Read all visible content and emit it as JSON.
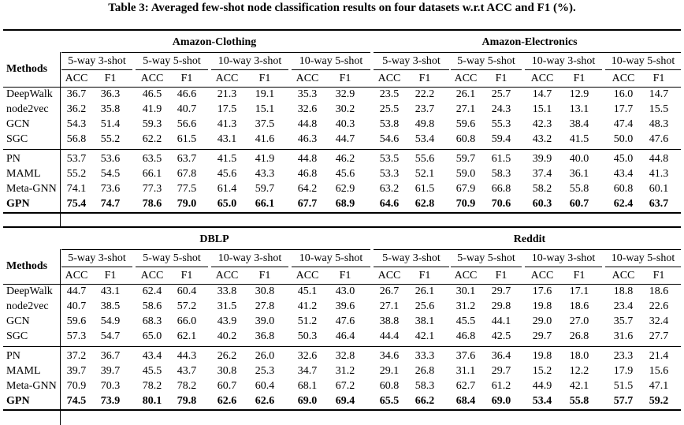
{
  "caption": "Table 3: Averaged few-shot node classification results on four datasets w.r.t ACC and F1 (%).",
  "methods_header": "Methods",
  "settings": [
    "5-way 3-shot",
    "5-way 5-shot",
    "10-way 3-shot",
    "10-way 5-shot"
  ],
  "metrics": [
    "ACC",
    "F1"
  ],
  "methods": [
    "DeepWalk",
    "node2vec",
    "GCN",
    "SGC",
    "PN",
    "MAML",
    "Meta-GNN",
    "GPN"
  ],
  "blocks": [
    {
      "datasets": [
        "Amazon-Clothing",
        "Amazon-Electronics"
      ],
      "rows": [
        [
          "36.7",
          "36.3",
          "46.5",
          "46.6",
          "21.3",
          "19.1",
          "35.3",
          "32.9",
          "23.5",
          "22.2",
          "26.1",
          "25.7",
          "14.7",
          "12.9",
          "16.0",
          "14.7"
        ],
        [
          "36.2",
          "35.8",
          "41.9",
          "40.7",
          "17.5",
          "15.1",
          "32.6",
          "30.2",
          "25.5",
          "23.7",
          "27.1",
          "24.3",
          "15.1",
          "13.1",
          "17.7",
          "15.5"
        ],
        [
          "54.3",
          "51.4",
          "59.3",
          "56.6",
          "41.3",
          "37.5",
          "44.8",
          "40.3",
          "53.8",
          "49.8",
          "59.6",
          "55.3",
          "42.3",
          "38.4",
          "47.4",
          "48.3"
        ],
        [
          "56.8",
          "55.2",
          "62.2",
          "61.5",
          "43.1",
          "41.6",
          "46.3",
          "44.7",
          "54.6",
          "53.4",
          "60.8",
          "59.4",
          "43.2",
          "41.5",
          "50.0",
          "47.6"
        ],
        [
          "53.7",
          "53.6",
          "63.5",
          "63.7",
          "41.5",
          "41.9",
          "44.8",
          "46.2",
          "53.5",
          "55.6",
          "59.7",
          "61.5",
          "39.9",
          "40.0",
          "45.0",
          "44.8"
        ],
        [
          "55.2",
          "54.5",
          "66.1",
          "67.8",
          "45.6",
          "43.3",
          "46.8",
          "45.6",
          "53.3",
          "52.1",
          "59.0",
          "58.3",
          "37.4",
          "36.1",
          "43.4",
          "41.3"
        ],
        [
          "74.1",
          "73.6",
          "77.3",
          "77.5",
          "61.4",
          "59.7",
          "64.2",
          "62.9",
          "63.2",
          "61.5",
          "67.9",
          "66.8",
          "58.2",
          "55.8",
          "60.8",
          "60.1"
        ],
        [
          "75.4",
          "74.7",
          "78.6",
          "79.0",
          "65.0",
          "66.1",
          "67.7",
          "68.9",
          "64.6",
          "62.8",
          "70.9",
          "70.6",
          "60.3",
          "60.7",
          "62.4",
          "63.7"
        ]
      ]
    },
    {
      "datasets": [
        "DBLP",
        "Reddit"
      ],
      "rows": [
        [
          "44.7",
          "43.1",
          "62.4",
          "60.4",
          "33.8",
          "30.8",
          "45.1",
          "43.0",
          "26.7",
          "26.1",
          "30.1",
          "29.7",
          "17.6",
          "17.1",
          "18.8",
          "18.6"
        ],
        [
          "40.7",
          "38.5",
          "58.6",
          "57.2",
          "31.5",
          "27.8",
          "41.2",
          "39.6",
          "27.1",
          "25.6",
          "31.2",
          "29.8",
          "19.8",
          "18.6",
          "23.4",
          "22.6"
        ],
        [
          "59.6",
          "54.9",
          "68.3",
          "66.0",
          "43.9",
          "39.0",
          "51.2",
          "47.6",
          "38.8",
          "38.1",
          "45.5",
          "44.1",
          "29.0",
          "27.0",
          "35.7",
          "32.4"
        ],
        [
          "57.3",
          "54.7",
          "65.0",
          "62.1",
          "40.2",
          "36.8",
          "50.3",
          "46.4",
          "44.4",
          "42.1",
          "46.8",
          "42.5",
          "29.7",
          "26.8",
          "31.6",
          "27.7"
        ],
        [
          "37.2",
          "36.7",
          "43.4",
          "44.3",
          "26.2",
          "26.0",
          "32.6",
          "32.8",
          "34.6",
          "33.3",
          "37.6",
          "36.4",
          "19.8",
          "18.0",
          "23.3",
          "21.4"
        ],
        [
          "39.7",
          "39.7",
          "45.5",
          "43.7",
          "30.8",
          "25.3",
          "34.7",
          "31.2",
          "29.1",
          "26.8",
          "31.1",
          "29.7",
          "15.2",
          "12.2",
          "17.9",
          "15.6"
        ],
        [
          "70.9",
          "70.3",
          "78.2",
          "78.2",
          "60.7",
          "60.4",
          "68.1",
          "67.2",
          "60.8",
          "58.3",
          "62.7",
          "61.2",
          "44.9",
          "42.1",
          "51.5",
          "47.1"
        ],
        [
          "74.5",
          "73.9",
          "80.1",
          "79.8",
          "62.6",
          "62.6",
          "69.0",
          "69.4",
          "65.5",
          "66.2",
          "68.4",
          "69.0",
          "53.4",
          "55.8",
          "57.7",
          "59.2"
        ]
      ]
    }
  ]
}
